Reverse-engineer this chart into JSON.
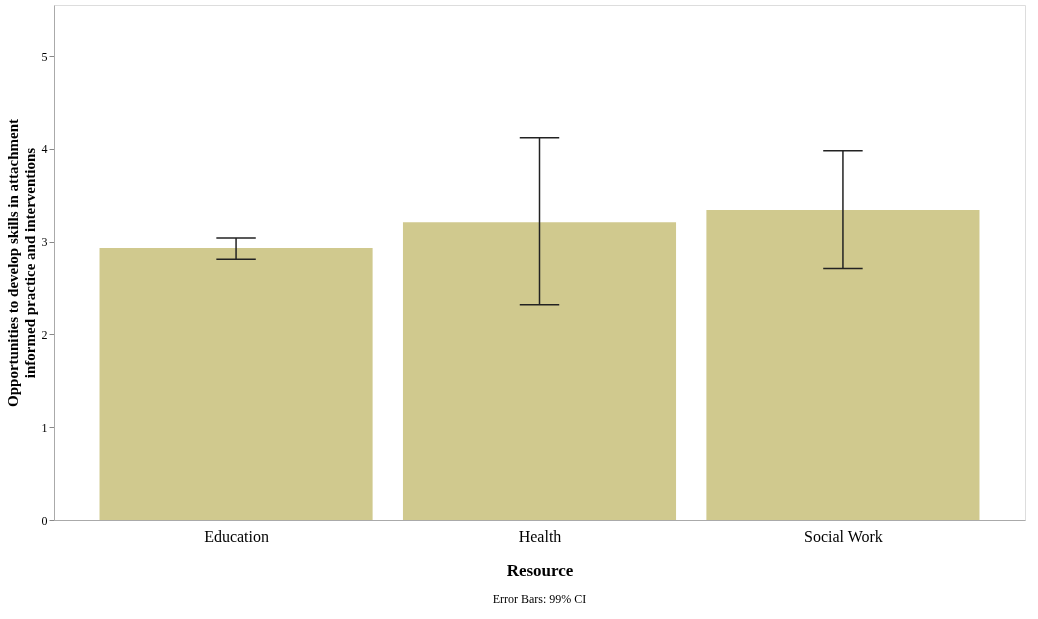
{
  "chart_data": {
    "type": "bar",
    "xlabel": "Resource",
    "ylabel": "Opportunities to develop skills in attachment informed practice and interventions",
    "categories": [
      "Education",
      "Health",
      "Social Work"
    ],
    "values": [
      2.93,
      3.21,
      3.34
    ],
    "errors": [
      [
        2.81,
        3.04
      ],
      [
        2.32,
        4.12
      ],
      [
        2.71,
        3.98
      ]
    ],
    "color": "#d0c98e",
    "ylim": [
      0,
      5.55
    ],
    "yticks": [
      0,
      1,
      2,
      3,
      4,
      5
    ],
    "grid": false,
    "annotations": [
      "Error Bars: 99% CI"
    ]
  }
}
